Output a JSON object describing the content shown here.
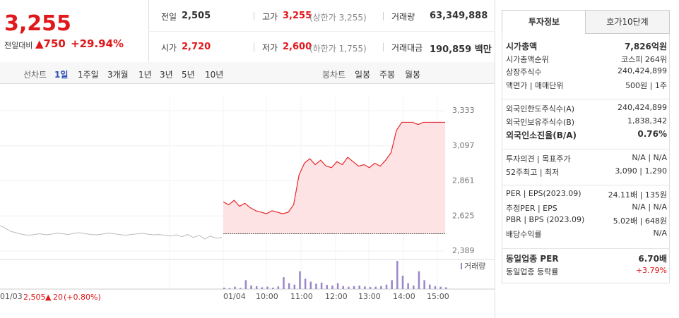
{
  "header": {
    "price": "3,255",
    "change_label": "전일대비",
    "change": "750",
    "change_rate": "+29.94%"
  },
  "info": [
    {
      "label": "전일",
      "value": "2,505"
    },
    {
      "label": "고가",
      "value": "3,255",
      "sub": "(상한가 3,255)"
    },
    {
      "label": "거래량",
      "value": "63,349,888"
    },
    {
      "label": "시가",
      "value": "2,720"
    },
    {
      "label": "저가",
      "value": "2,600",
      "sub": "(하한가 1,755)"
    },
    {
      "label": "거래대금",
      "value": "190,859 백만"
    }
  ],
  "toolbar": {
    "line_label": "선차트",
    "periods": [
      "1일",
      "1주일",
      "3개월",
      "1년",
      "3년",
      "5년",
      "10년"
    ],
    "candle_label": "봉차트",
    "candles": [
      "일봉",
      "주봉",
      "월봉"
    ]
  },
  "price_chart": {
    "yticks": [
      {
        "value": 3333,
        "label": "3,333"
      },
      {
        "value": 3097,
        "label": "3,097"
      },
      {
        "value": 2861,
        "label": "2,861"
      },
      {
        "value": 2625,
        "label": "2,625"
      },
      {
        "value": 2389,
        "label": "2,389"
      }
    ],
    "ylim": [
      2389,
      3333
    ],
    "prev_day": [
      2560,
      2540,
      2520,
      2510,
      2500,
      2495,
      2500,
      2505,
      2498,
      2502,
      2510,
      2505,
      2500,
      2508,
      2512,
      2505,
      2500,
      2498,
      2503,
      2510,
      2506,
      2500,
      2495,
      2500,
      2504,
      2508,
      2502,
      2498,
      2500,
      2495,
      2490,
      2498,
      2485,
      2500,
      2480,
      2495,
      2470,
      2490,
      2475,
      2480
    ],
    "today": [
      2720,
      2700,
      2730,
      2690,
      2710,
      2680,
      2660,
      2650,
      2640,
      2660,
      2650,
      2640,
      2650,
      2700,
      2900,
      2980,
      3010,
      2970,
      3000,
      2960,
      2950,
      2990,
      2970,
      3020,
      2990,
      2960,
      2970,
      2950,
      2980,
      2960,
      3000,
      3050,
      3200,
      3255,
      3255,
      3255,
      3240,
      3255,
      3255,
      3255,
      3255,
      3255
    ],
    "base": 2505,
    "volume_label": "거래량",
    "volume": [
      5,
      3,
      8,
      4,
      30,
      12,
      10,
      6,
      8,
      5,
      9,
      40,
      20,
      15,
      60,
      35,
      25,
      18,
      22,
      14,
      12,
      20,
      10,
      8,
      10,
      12,
      9,
      7,
      8,
      10,
      15,
      30,
      95,
      45,
      20,
      12,
      60,
      30,
      15,
      10,
      8,
      6
    ],
    "xlabels": [
      "01/03",
      "01/04",
      "10:00",
      "11:00",
      "12:00",
      "13:00",
      "14:00",
      "15:00"
    ]
  },
  "footer": {
    "date": "01/03",
    "price": "2,505",
    "change": "20",
    "rate": "(+0.80%)"
  },
  "side": {
    "tabs": [
      "투자정보",
      "호가10단계"
    ],
    "sections": [
      [
        {
          "label": "시가총액",
          "value": "7,826억원"
        },
        {
          "label": "시가총액순위",
          "value": "코스피 264위"
        },
        {
          "label": "상장주식수",
          "value": "240,424,899"
        },
        {
          "label": "액면가 | 매매단위",
          "value": "500원 | 1주"
        }
      ],
      [
        {
          "label": "외국인한도주식수(A)",
          "value": "240,424,899"
        },
        {
          "label": "외국인보유주식수(B)",
          "value": "1,838,342"
        },
        {
          "label": "외국인소진율(B/A)",
          "value": "0.76%"
        }
      ],
      [
        {
          "label": "투자의견 | 목표주가",
          "value": "N/A | N/A"
        },
        {
          "label": "52주최고 | 최저",
          "value": "3,090 | 1,290"
        }
      ],
      [
        {
          "label": "PER | EPS(2023.09)",
          "value": "24.11배 | 135원"
        },
        {
          "label": "추정PER | EPS",
          "value": "N/A | N/A"
        },
        {
          "label": "PBR | BPS (2023.09)",
          "value": "5.02배 | 648원"
        },
        {
          "label": "배당수익률",
          "value": "N/A"
        }
      ],
      [
        {
          "label": "동일업종 PER",
          "value": "6.70배"
        },
        {
          "label": "동일업종 등락률",
          "value": "+3.79%"
        }
      ]
    ]
  }
}
